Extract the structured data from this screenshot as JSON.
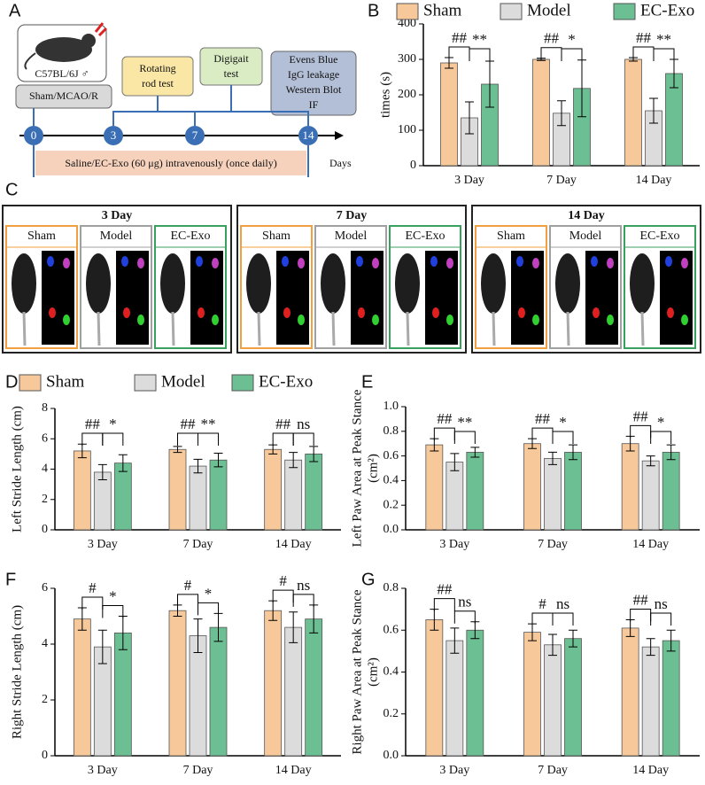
{
  "panel_labels": [
    "A",
    "B",
    "C",
    "D",
    "E",
    "F",
    "G"
  ],
  "timeline": {
    "mouse_label": "C57BL/6J ♂",
    "group_box": "Sham/MCAO/R",
    "rotarod": [
      "Rotating",
      "rod test"
    ],
    "digigait": [
      "Digigait",
      "test"
    ],
    "endpoint": [
      "Evens Blue",
      "IgG leakage",
      "Western Blot",
      "IF"
    ],
    "days": [
      "0",
      "3",
      "7",
      "14"
    ],
    "days_label": "Days",
    "treatment": "Saline/EC-Exo (60 μg) intravenously (once daily)"
  },
  "photos": {
    "groups": [
      {
        "title": "3 Day",
        "labels": [
          "Sham",
          "Model",
          "EC-Exo"
        ]
      },
      {
        "title": "7 Day",
        "labels": [
          "Sham",
          "Model",
          "EC-Exo"
        ]
      },
      {
        "title": "14 Day",
        "labels": [
          "Sham",
          "Model",
          "EC-Exo"
        ]
      }
    ]
  },
  "chart_data": [
    {
      "type": "bar",
      "ylabel": "times (s)",
      "categories": [
        "3 Day",
        "7 Day",
        "14 Day"
      ],
      "series": [
        {
          "name": "Sham",
          "color": "#f7c99a",
          "values": [
            290,
            300,
            300
          ],
          "errors": [
            15,
            3,
            5
          ]
        },
        {
          "name": "Model",
          "color": "#dcdcdc",
          "values": [
            135,
            148,
            155
          ],
          "errors": [
            45,
            35,
            35
          ]
        },
        {
          "name": "EC-Exo",
          "color": "#6cbf92",
          "values": [
            230,
            218,
            260
          ],
          "errors": [
            65,
            80,
            40
          ]
        }
      ],
      "ylim": [
        0,
        400
      ],
      "yticks": [
        0,
        100,
        200,
        300,
        400
      ],
      "annotations": [
        "##",
        "**",
        "##",
        "*",
        "##",
        "**"
      ],
      "legend": true
    },
    {
      "type": "bar",
      "ylabel": "Left Stride Length (cm)",
      "categories": [
        "3 Day",
        "7 Day",
        "14 Day"
      ],
      "series": [
        {
          "name": "Sham",
          "color": "#f7c99a",
          "values": [
            5.2,
            5.3,
            5.3
          ],
          "errors": [
            0.45,
            0.2,
            0.3
          ]
        },
        {
          "name": "Model",
          "color": "#dcdcdc",
          "values": [
            3.8,
            4.2,
            4.6
          ],
          "errors": [
            0.5,
            0.45,
            0.5
          ]
        },
        {
          "name": "EC-Exo",
          "color": "#6cbf92",
          "values": [
            4.4,
            4.6,
            5.0
          ],
          "errors": [
            0.55,
            0.45,
            0.5
          ]
        }
      ],
      "ylim": [
        0,
        8
      ],
      "yticks": [
        0,
        2,
        4,
        6,
        8
      ],
      "annotations": [
        "##",
        "*",
        "##",
        "**",
        "##",
        "ns"
      ],
      "legend": true
    },
    {
      "type": "bar",
      "ylabel": [
        "Left Paw Area at Peak Stance",
        "(cm²)"
      ],
      "categories": [
        "3 Day",
        "7 Day",
        "14 Day"
      ],
      "series": [
        {
          "color": "#f7c99a",
          "values": [
            0.69,
            0.7,
            0.7
          ],
          "errors": [
            0.05,
            0.04,
            0.06
          ]
        },
        {
          "color": "#dcdcdc",
          "values": [
            0.55,
            0.58,
            0.56
          ],
          "errors": [
            0.07,
            0.05,
            0.04
          ]
        },
        {
          "color": "#6cbf92",
          "values": [
            0.63,
            0.63,
            0.63
          ],
          "errors": [
            0.04,
            0.06,
            0.06
          ]
        }
      ],
      "ylim": [
        0,
        1.0
      ],
      "yticks": [
        {
          "value": 0,
          "label": "0.0"
        },
        0.2,
        0.4,
        0.6,
        0.8,
        {
          "value": 1.0,
          "label": "1.0"
        }
      ],
      "annotations": [
        "##",
        "**",
        "##",
        "*",
        "##",
        "*"
      ]
    },
    {
      "type": "bar",
      "ylabel": "Right Stride Length (cm)",
      "categories": [
        "3 Day",
        "7 Day",
        "14 Day"
      ],
      "series": [
        {
          "color": "#f7c99a",
          "values": [
            4.9,
            5.2,
            5.2
          ],
          "errors": [
            0.4,
            0.2,
            0.35
          ]
        },
        {
          "color": "#dcdcdc",
          "values": [
            3.9,
            4.3,
            4.6
          ],
          "errors": [
            0.6,
            0.6,
            0.55
          ]
        },
        {
          "color": "#6cbf92",
          "values": [
            4.4,
            4.6,
            4.9
          ],
          "errors": [
            0.6,
            0.5,
            0.5
          ]
        }
      ],
      "ylim": [
        0,
        6
      ],
      "yticks": [
        0,
        2,
        4,
        6
      ],
      "annotations": [
        "#",
        "*",
        "#",
        "*",
        "#",
        "ns"
      ]
    },
    {
      "type": "bar",
      "ylabel": [
        "Right Paw Area at Peak Stance",
        "(cm²)"
      ],
      "categories": [
        "3 Day",
        "7 Day",
        "14 Day"
      ],
      "series": [
        {
          "color": "#f7c99a",
          "values": [
            0.65,
            0.59,
            0.61
          ],
          "errors": [
            0.05,
            0.04,
            0.04
          ]
        },
        {
          "color": "#dcdcdc",
          "values": [
            0.55,
            0.53,
            0.52
          ],
          "errors": [
            0.06,
            0.05,
            0.04
          ]
        },
        {
          "color": "#6cbf92",
          "values": [
            0.6,
            0.56,
            0.55
          ],
          "errors": [
            0.04,
            0.04,
            0.05
          ]
        }
      ],
      "ylim": [
        0,
        0.8
      ],
      "yticks": [
        {
          "value": 0,
          "label": "0.0"
        },
        0.2,
        0.4,
        0.6,
        0.8
      ],
      "annotations": [
        "##",
        "ns",
        "#",
        "ns",
        "##",
        "ns"
      ]
    }
  ]
}
